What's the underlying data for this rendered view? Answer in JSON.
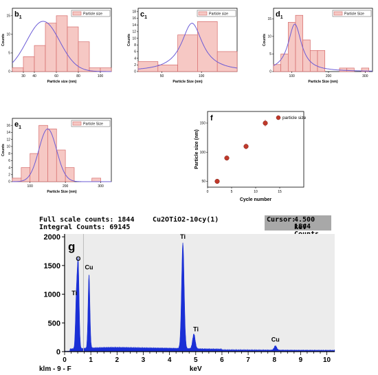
{
  "chart_data": [
    {
      "type": "bar",
      "panel_label": "b",
      "panel_sub": "1",
      "legend": "Particle size",
      "xlabel": "Particle size (nm)",
      "ylabel": "Counts",
      "xlim": [
        20,
        110
      ],
      "ylim": [
        0,
        17
      ],
      "xticks": [
        30,
        40,
        60,
        80,
        100
      ],
      "yticks": [
        0,
        5,
        10,
        15
      ],
      "bin_width": 10,
      "bins": [
        20,
        30,
        40,
        50,
        60,
        70,
        80,
        90,
        100
      ],
      "counts": [
        1,
        4,
        7,
        13,
        15,
        12,
        8,
        1,
        1
      ],
      "fit": {
        "mu": 48,
        "sigma": 15,
        "amp": 13.5
      }
    },
    {
      "type": "bar",
      "panel_label": "c",
      "panel_sub": "1",
      "legend": "Particle size",
      "xlabel": "Particle Size (nm)",
      "ylabel": "Counts",
      "xlim": [
        20,
        145
      ],
      "ylim": [
        0,
        19
      ],
      "xticks": [
        50,
        100
      ],
      "yticks": [
        0,
        2,
        4,
        6,
        8,
        10,
        12,
        14,
        16,
        18
      ],
      "bin_width": 25,
      "bins": [
        20,
        45,
        70,
        95,
        120
      ],
      "counts": [
        3,
        2,
        11,
        15,
        6
      ],
      "fit": {
        "mu": 88,
        "sigma": 16,
        "amp": 14.5,
        "type": "lorentz"
      }
    },
    {
      "type": "bar",
      "panel_label": "d",
      "panel_sub": "1",
      "legend": "Particle Size",
      "xlabel": "Particle Size (nm)",
      "ylabel": "Counts",
      "xlim": [
        50,
        320
      ],
      "ylim": [
        0,
        18
      ],
      "xticks": [
        100,
        200,
        300
      ],
      "yticks": [
        0,
        5,
        10,
        15
      ],
      "bin_width": 20,
      "bins": [
        50,
        70,
        90,
        110,
        130,
        150,
        170,
        190,
        210,
        230,
        250,
        270,
        290
      ],
      "counts": [
        2,
        5,
        14,
        16,
        9,
        6,
        6,
        0,
        0,
        1,
        1,
        0,
        1
      ],
      "fit": {
        "mu": 108,
        "sigma": 22,
        "amp": 13.5,
        "type": "lorentz"
      }
    },
    {
      "type": "bar",
      "panel_label": "e",
      "panel_sub": "1",
      "legend": "Particle Size",
      "xlabel": "Particle Size (nm)",
      "ylabel": "Counts",
      "xlim": [
        50,
        330
      ],
      "ylim": [
        0,
        18
      ],
      "xticks": [
        100,
        200,
        300
      ],
      "yticks": [
        0,
        2,
        4,
        6,
        8,
        10,
        12,
        14,
        16
      ],
      "bin_width": 25,
      "bins": [
        50,
        75,
        100,
        125,
        150,
        175,
        200,
        225,
        250,
        275,
        300
      ],
      "counts": [
        1,
        4,
        8,
        16,
        15,
        9,
        4,
        0,
        0,
        1,
        0
      ],
      "fit": {
        "mu": 150,
        "sigma": 25,
        "amp": 15
      }
    },
    {
      "type": "scatter",
      "panel_label": "f",
      "legend": "particle size",
      "xlabel": "Cycle number",
      "ylabel": "Particle size (nm)",
      "xlim": [
        0,
        20
      ],
      "ylim": [
        40,
        170
      ],
      "xticks": [
        0,
        5,
        10,
        15
      ],
      "yticks": [
        50,
        100,
        150
      ],
      "x": [
        2,
        4,
        8,
        12
      ],
      "y": [
        50,
        90,
        110,
        150
      ],
      "error": [
        3,
        4,
        5,
        6
      ]
    },
    {
      "type": "line",
      "panel_label": "g",
      "title": "Cu2OTiO2-10cy(1)",
      "full_scale_label": "Full scale counts: 1844",
      "integral_label": "Integral Counts: 69145",
      "cursor_label": "Cursor:",
      "cursor_kev": "4.500 keV",
      "cursor_counts": "1844 Counts",
      "footer_left": "klm - 9 - F",
      "xlabel": "keV",
      "xlim": [
        0,
        10.3
      ],
      "ylim": [
        0,
        2050
      ],
      "xticks": [
        0,
        1,
        2,
        3,
        4,
        5,
        6,
        7,
        8,
        9,
        10
      ],
      "yticks": [
        0,
        500,
        1000,
        1500,
        2000
      ],
      "peaks": [
        {
          "label": "O",
          "kev": 0.52,
          "counts": 1440
        },
        {
          "label": "Ti",
          "kev": 0.45,
          "counts": 890
        },
        {
          "label": "Cu",
          "kev": 0.93,
          "counts": 1290
        },
        {
          "label": "Ti",
          "kev": 4.51,
          "counts": 1844
        },
        {
          "label": "Ti",
          "kev": 4.93,
          "counts": 260
        },
        {
          "label": "Cu",
          "kev": 8.04,
          "counts": 75
        }
      ]
    }
  ]
}
